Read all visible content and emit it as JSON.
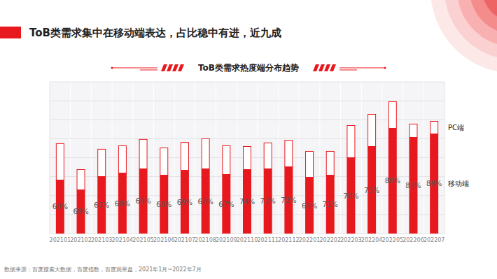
{
  "page": {
    "headline": "ToB类需求集中在移动端表达，占比稳中有进，近九成",
    "source": "数据来源：百度搜索大数据，百度指数，百度观星盘，2021年1月~2022年7月"
  },
  "chart_data": {
    "type": "bar",
    "title": "ToB类需求热度端分布趋势",
    "stacked": true,
    "grid": true,
    "tick_labels": "x",
    "categories": [
      "202101",
      "202102",
      "202103",
      "202104",
      "202105",
      "202106",
      "202107",
      "202108",
      "202109",
      "202110",
      "202111",
      "202112",
      "202201",
      "202202",
      "202203",
      "202204",
      "202205",
      "202206",
      "202207"
    ],
    "series": [
      {
        "name": "移动端",
        "color": "#e8191e",
        "values": [
          35.5,
          29.0,
          37.8,
          40.1,
          42.9,
          38.7,
          41.9,
          42.9,
          39.2,
          42.4,
          42.9,
          44.2,
          37.3,
          38.7,
          50.2,
          57.6,
          69.6,
          63.6,
          65.9
        ]
      },
      {
        "name": "PC端",
        "color": "#e8191e",
        "values": [
          24.0,
          13.4,
          18.0,
          18.0,
          19.4,
          18.0,
          18.4,
          19.8,
          18.9,
          15.2,
          17.1,
          17.5,
          17.1,
          15.7,
          21.2,
          21.2,
          17.5,
          8.8,
          8.3
        ]
      }
    ],
    "mobile_share": [
      60,
      69,
      67,
      68,
      69,
      68,
      69,
      68,
      67,
      74,
      72,
      72,
      68,
      71,
      70,
      73,
      80,
      88,
      89
    ],
    "mobile_share_labels": [
      "60%",
      "69%",
      "67%",
      "68%",
      "69%",
      "68%",
      "69%",
      "68%",
      "67%",
      "74%",
      "72%",
      "72%",
      "68%",
      "71%",
      "70%",
      "73%",
      "80%",
      "88%",
      "89%"
    ],
    "ylim": [
      0,
      100
    ],
    "yticks": [
      0,
      12.5,
      25,
      37.5,
      50,
      62.5,
      75,
      87.5,
      100
    ]
  }
}
